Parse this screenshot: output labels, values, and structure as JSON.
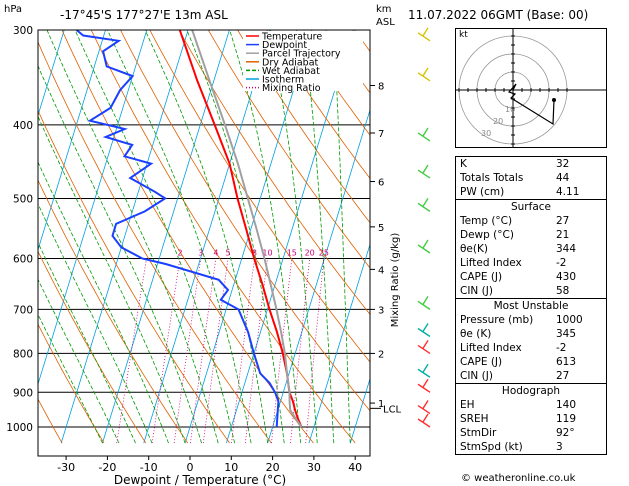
{
  "header": {
    "pressure_unit": "hPa",
    "location": "-17°45'S  177°27'E  13m  ASL",
    "height_unit_line1": "km",
    "height_unit_line2": "ASL",
    "datetime": "11.07.2022  06GMT  (Base: 00)"
  },
  "legend": [
    {
      "label": "Temperature",
      "color": "#ff0000",
      "dash": ""
    },
    {
      "label": "Dewpoint",
      "color": "#1a3fff",
      "dash": ""
    },
    {
      "label": "Parcel Trajectory",
      "color": "#a0a0a0",
      "dash": ""
    },
    {
      "label": "Dry Adiabat",
      "color": "#e06000",
      "dash": ""
    },
    {
      "label": "Wet Adiabat",
      "color": "#009900",
      "dash": "4,2"
    },
    {
      "label": "Isotherm",
      "color": "#00a0e0",
      "dash": ""
    },
    {
      "label": "Mixing Ratio",
      "color": "#cc0077",
      "dash": "1,2"
    }
  ],
  "chart_data": {
    "type": "line",
    "xlabel": "Dewpoint / Temperature (°C)",
    "ylabel": "hPa",
    "right_label": "Mixing Ratio (g/kg)",
    "x_ticks": [
      -30,
      -20,
      -10,
      0,
      10,
      20,
      30,
      40
    ],
    "pressure_levels": [
      300,
      400,
      500,
      600,
      700,
      800,
      900,
      1000
    ],
    "km_ticks": [
      {
        "p": 930,
        "label": "1"
      },
      {
        "p": 800,
        "label": "2"
      },
      {
        "p": 700,
        "label": "3"
      },
      {
        "p": 620,
        "label": "4"
      },
      {
        "p": 545,
        "label": "5"
      },
      {
        "p": 475,
        "label": "6"
      },
      {
        "p": 410,
        "label": "7"
      },
      {
        "p": 355,
        "label": "8"
      }
    ],
    "lcl": {
      "p": 945,
      "label": "LCL"
    },
    "mixing_ratio_labels": [
      "2",
      "3",
      "4",
      "5",
      "8",
      "10",
      "15",
      "20",
      "25"
    ],
    "series": [
      {
        "name": "Temperature",
        "color": "#ff0000",
        "points": [
          [
            1000,
            27
          ],
          [
            975,
            25.5
          ],
          [
            950,
            24.2
          ],
          [
            925,
            23
          ],
          [
            900,
            21.5
          ],
          [
            875,
            20.5
          ],
          [
            850,
            19.5
          ],
          [
            800,
            17
          ],
          [
            750,
            14
          ],
          [
            700,
            10.5
          ],
          [
            650,
            7
          ],
          [
            600,
            3
          ],
          [
            550,
            -1
          ],
          [
            500,
            -5.5
          ],
          [
            450,
            -10
          ],
          [
            400,
            -16.5
          ],
          [
            350,
            -24
          ],
          [
            300,
            -32
          ]
        ]
      },
      {
        "name": "Dewpoint",
        "color": "#1a3fff",
        "points": [
          [
            1000,
            21
          ],
          [
            950,
            20
          ],
          [
            925,
            19.5
          ],
          [
            900,
            18
          ],
          [
            875,
            16
          ],
          [
            850,
            13
          ],
          [
            800,
            10
          ],
          [
            750,
            7
          ],
          [
            700,
            3
          ],
          [
            680,
            -2
          ],
          [
            660,
            -1
          ],
          [
            640,
            -4
          ],
          [
            610,
            -18
          ],
          [
            600,
            -24
          ],
          [
            580,
            -30
          ],
          [
            560,
            -33
          ],
          [
            540,
            -33
          ],
          [
            520,
            -27
          ],
          [
            500,
            -23
          ],
          [
            490,
            -26
          ],
          [
            470,
            -33
          ],
          [
            450,
            -29
          ],
          [
            440,
            -36
          ],
          [
            425,
            -35
          ],
          [
            415,
            -42
          ],
          [
            405,
            -38
          ],
          [
            395,
            -47
          ],
          [
            380,
            -43
          ],
          [
            360,
            -42
          ],
          [
            345,
            -40
          ],
          [
            335,
            -47
          ],
          [
            320,
            -49
          ],
          [
            310,
            -46
          ],
          [
            305,
            -55
          ],
          [
            300,
            -57
          ]
        ]
      },
      {
        "name": "Parcel Trajectory",
        "color": "#a0a0a0",
        "points": [
          [
            1000,
            27
          ],
          [
            975,
            25
          ],
          [
            950,
            23
          ],
          [
            925,
            22.2
          ],
          [
            900,
            21.5
          ],
          [
            850,
            19.5
          ],
          [
            800,
            17.5
          ],
          [
            750,
            15
          ],
          [
            700,
            12.2
          ],
          [
            650,
            9
          ],
          [
            600,
            5.5
          ],
          [
            550,
            1.5
          ],
          [
            500,
            -3
          ],
          [
            450,
            -8
          ],
          [
            400,
            -14
          ],
          [
            350,
            -21
          ],
          [
            300,
            -29
          ]
        ]
      }
    ]
  },
  "hodograph": {
    "unit": "kt",
    "ring_labels": [
      "10",
      "20",
      "30"
    ]
  },
  "indices": [
    {
      "label": "K",
      "value": "32"
    },
    {
      "label": "Totals Totals",
      "value": "44"
    },
    {
      "label": "PW (cm)",
      "value": "4.11"
    }
  ],
  "surface": {
    "title": "Surface",
    "rows": [
      {
        "label": "Temp (°C)",
        "value": "27"
      },
      {
        "label": "Dewp (°C)",
        "value": "21"
      },
      {
        "label": "θe(K)",
        "value": "344"
      },
      {
        "label": "Lifted Index",
        "value": "-2"
      },
      {
        "label": "CAPE (J)",
        "value": "430"
      },
      {
        "label": "CIN (J)",
        "value": "58"
      }
    ]
  },
  "most_unstable": {
    "title": "Most Unstable",
    "rows": [
      {
        "label": "Pressure (mb)",
        "value": "1000"
      },
      {
        "label": "θe (K)",
        "value": "345"
      },
      {
        "label": "Lifted Index",
        "value": "-2"
      },
      {
        "label": "CAPE (J)",
        "value": "613"
      },
      {
        "label": "CIN (J)",
        "value": "27"
      }
    ]
  },
  "hodograph_table": {
    "title": "Hodograph",
    "rows": [
      {
        "label": "EH",
        "value": "140"
      },
      {
        "label": "SREH",
        "value": "119"
      },
      {
        "label": "StmDir",
        "value": "92°"
      },
      {
        "label": "StmSpd (kt)",
        "value": "3"
      }
    ]
  },
  "copyright": "© weatheronline.co.uk"
}
